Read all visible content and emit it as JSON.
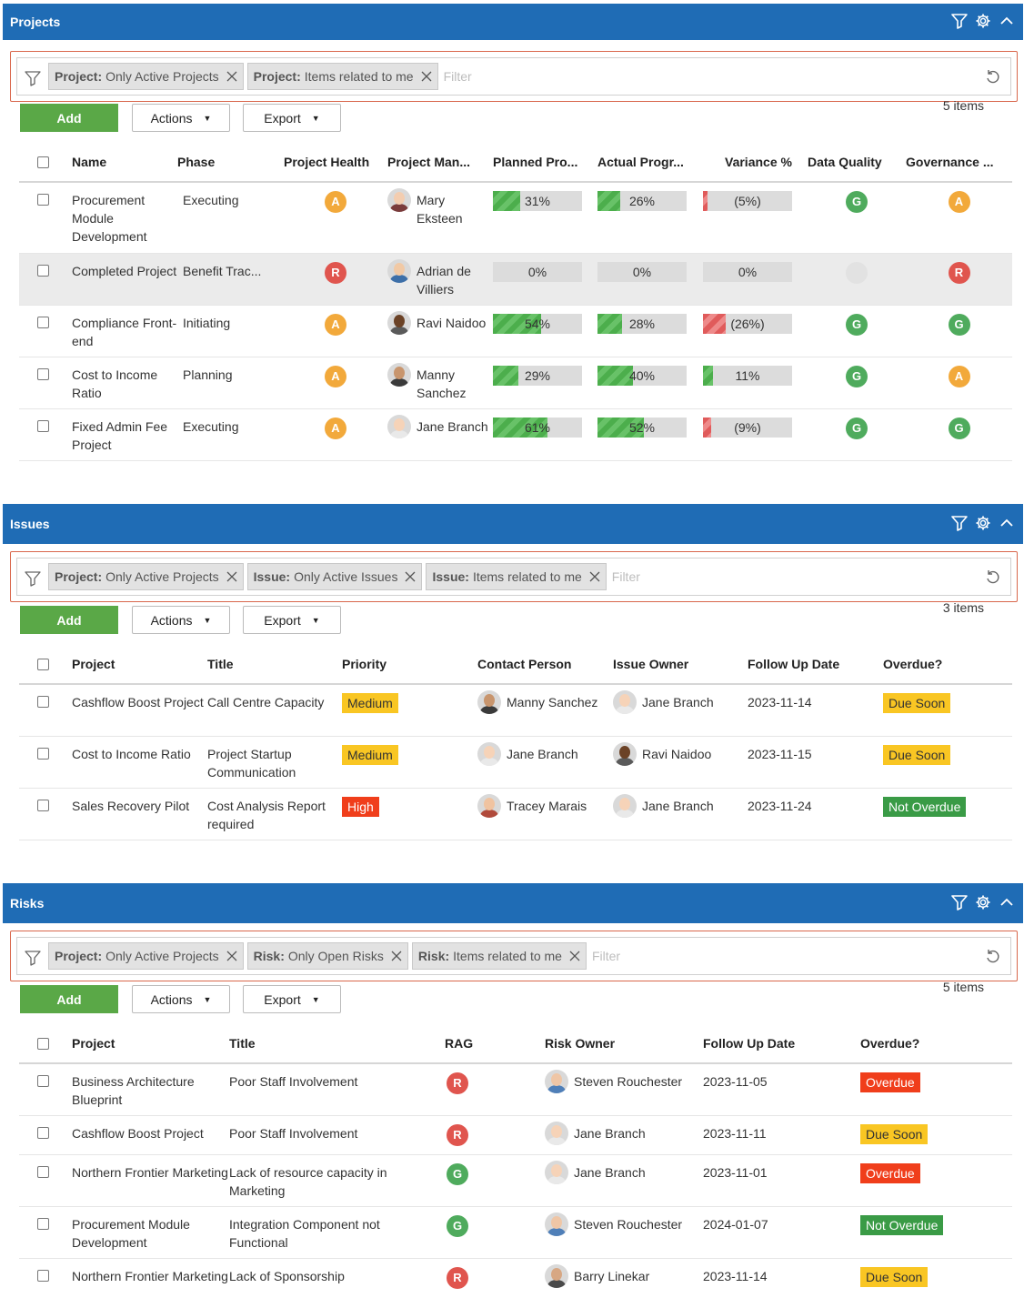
{
  "projects": {
    "title": "Projects",
    "filters": [
      {
        "field": "Project:",
        "value": "Only Active Projects"
      },
      {
        "field": "Project:",
        "value": "Items related to me"
      }
    ],
    "filter_placeholder": "Filter",
    "add_label": "Add",
    "actions_label": "Actions",
    "export_label": "Export",
    "count": "5 items",
    "columns": [
      "Name",
      "Phase",
      "Project Health",
      "Project Man...",
      "Planned Pro...",
      "Actual Progr...",
      "Variance %",
      "Data Quality",
      "Governance ..."
    ],
    "rows": [
      {
        "name": "Procurement Module Development",
        "phase": "Executing",
        "health": "A",
        "manager": "Mary Eksteen",
        "planned": {
          "label": "31%",
          "value": 31
        },
        "actual": {
          "label": "26%",
          "value": 26
        },
        "variance": {
          "label": "(5%)",
          "value": -5
        },
        "quality": "G",
        "governance": "A"
      },
      {
        "name": "Completed Project",
        "phase": "Benefit Trac...",
        "health": "R",
        "manager": "Adrian de Villiers",
        "planned": {
          "label": "0%",
          "value": 0
        },
        "actual": {
          "label": "0%",
          "value": 0
        },
        "variance": {
          "label": "0%",
          "value": 0
        },
        "quality": "",
        "governance": "R"
      },
      {
        "name": "Compliance Front-end",
        "phase": "Initiating",
        "health": "A",
        "manager": "Ravi Naidoo",
        "planned": {
          "label": "54%",
          "value": 54
        },
        "actual": {
          "label": "28%",
          "value": 28
        },
        "variance": {
          "label": "(26%)",
          "value": -26
        },
        "quality": "G",
        "governance": "G"
      },
      {
        "name": "Cost to Income Ratio",
        "phase": "Planning",
        "health": "A",
        "manager": "Manny Sanchez",
        "planned": {
          "label": "29%",
          "value": 29
        },
        "actual": {
          "label": "40%",
          "value": 40
        },
        "variance": {
          "label": "11%",
          "value": 11
        },
        "quality": "G",
        "governance": "A"
      },
      {
        "name": "Fixed Admin Fee Project",
        "phase": "Executing",
        "health": "A",
        "manager": "Jane Branch",
        "planned": {
          "label": "61%",
          "value": 61
        },
        "actual": {
          "label": "52%",
          "value": 52
        },
        "variance": {
          "label": "(9%)",
          "value": -9
        },
        "quality": "G",
        "governance": "G"
      }
    ]
  },
  "issues": {
    "title": "Issues",
    "filters": [
      {
        "field": "Project:",
        "value": "Only Active Projects"
      },
      {
        "field": "Issue:",
        "value": "Only Active Issues"
      },
      {
        "field": "Issue:",
        "value": "Items related to me"
      }
    ],
    "filter_placeholder": "Filter",
    "add_label": "Add",
    "actions_label": "Actions",
    "export_label": "Export",
    "count": "3 items",
    "columns": [
      "Project",
      "Title",
      "Priority",
      "Contact Person",
      "Issue Owner",
      "Follow Up Date",
      "Overdue?"
    ],
    "rows": [
      {
        "project": "Cashflow Boost Project",
        "title": "Call Centre Capacity",
        "priority": "Medium",
        "contact": "Manny Sanchez",
        "owner": "Jane Branch",
        "date": "2023-11-14",
        "overdue": "Due Soon"
      },
      {
        "project": "Cost to Income Ratio",
        "title": "Project Startup Communication",
        "priority": "Medium",
        "contact": "Jane Branch",
        "owner": "Ravi Naidoo",
        "date": "2023-11-15",
        "overdue": "Due Soon"
      },
      {
        "project": "Sales Recovery Pilot",
        "title": "Cost Analysis Report required",
        "priority": "High",
        "contact": "Tracey Marais",
        "owner": "Jane Branch",
        "date": "2023-11-24",
        "overdue": "Not Overdue"
      }
    ]
  },
  "risks": {
    "title": "Risks",
    "filters": [
      {
        "field": "Project:",
        "value": "Only Active Projects"
      },
      {
        "field": "Risk:",
        "value": "Only Open Risks"
      },
      {
        "field": "Risk:",
        "value": "Items related to me"
      }
    ],
    "filter_placeholder": "Filter",
    "add_label": "Add",
    "actions_label": "Actions",
    "export_label": "Export",
    "count": "5 items",
    "columns": [
      "Project",
      "Title",
      "RAG",
      "Risk Owner",
      "Follow Up Date",
      "Overdue?"
    ],
    "rows": [
      {
        "project": "Business Architecture Blueprint",
        "title": "Poor Staff Involvement",
        "rag": "R",
        "owner": "Steven Rouchester",
        "date": "2023-11-05",
        "overdue": "Overdue"
      },
      {
        "project": "Cashflow Boost Project",
        "title": "Poor Staff Involvement",
        "rag": "R",
        "owner": "Jane Branch",
        "date": "2023-11-11",
        "overdue": "Due Soon"
      },
      {
        "project": "Northern Frontier Marketing",
        "title": "Lack of resource capacity in Marketing",
        "rag": "G",
        "owner": "Jane Branch",
        "date": "2023-11-01",
        "overdue": "Overdue"
      },
      {
        "project": "Procurement Module Development",
        "title": "Integration Component not Functional",
        "rag": "G",
        "owner": "Steven Rouchester",
        "date": "2024-01-07",
        "overdue": "Not Overdue"
      },
      {
        "project": "Northern Frontier Marketing",
        "title": "Lack of Sponsorship",
        "rag": "R",
        "owner": "Barry Linekar",
        "date": "2023-11-14",
        "overdue": "Due Soon"
      }
    ]
  },
  "icons": {
    "filter": "filter-icon",
    "settings": "gear-icon",
    "collapse": "chevron-up-icon",
    "remove": "close-icon",
    "reset": "reset-icon",
    "caret": "caret-down-icon"
  },
  "colors": {
    "header": "#1f6cb5",
    "add_button": "#5aa847",
    "amber": "#f2a93b",
    "red": "#e0554e",
    "green": "#4fab5d",
    "tag_yellow": "#f9c623",
    "tag_red": "#f03e1b",
    "tag_green": "#3a9b46"
  }
}
